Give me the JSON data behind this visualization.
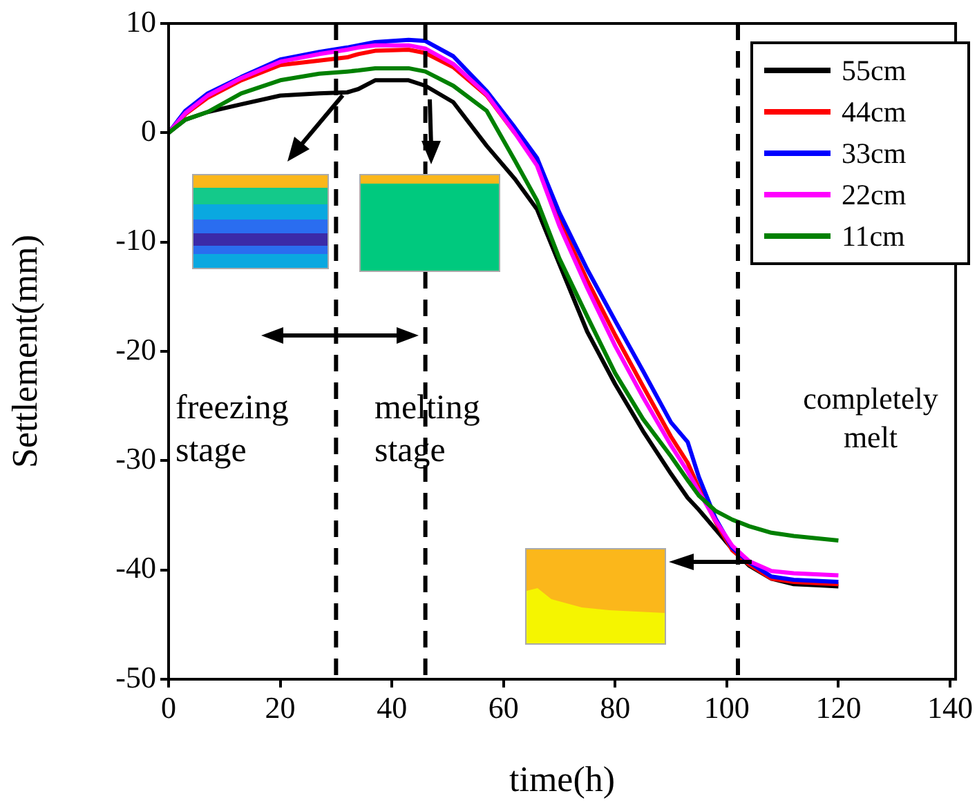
{
  "chart_data": {
    "type": "line",
    "xlabel": "time(h)",
    "ylabel": "Settlement(mm)",
    "x": [
      0,
      3,
      7,
      13,
      20,
      27,
      32,
      34,
      37,
      43,
      46,
      51,
      57,
      62,
      66,
      70,
      75,
      80,
      85,
      90,
      93,
      95,
      98,
      101,
      104,
      108,
      112,
      116,
      120
    ],
    "series": [
      {
        "name": "55cm",
        "color": "#000000",
        "values": [
          0,
          1.2,
          1.9,
          2.6,
          3.4,
          3.6,
          3.7,
          4.0,
          4.8,
          4.8,
          4.3,
          2.8,
          -1.2,
          -4.2,
          -7.0,
          -12.0,
          -18.2,
          -23.0,
          -27.3,
          -31.2,
          -33.4,
          -34.5,
          -36.3,
          -38.1,
          -39.6,
          -40.8,
          -41.3,
          -41.4,
          -41.5
        ]
      },
      {
        "name": "44cm",
        "color": "#ff0000",
        "values": [
          0,
          1.7,
          3.2,
          4.8,
          6.2,
          6.6,
          6.9,
          7.2,
          7.5,
          7.6,
          7.3,
          6.0,
          3.4,
          0,
          -2.4,
          -8.0,
          -13.5,
          -18.5,
          -23.2,
          -27.8,
          -30.2,
          -32.5,
          -35.6,
          -38.2,
          -39.5,
          -40.8,
          -41.1,
          -41.2,
          -41.3
        ]
      },
      {
        "name": "33cm",
        "color": "#0000ff",
        "values": [
          0,
          2.0,
          3.6,
          5.1,
          6.7,
          7.4,
          7.8,
          8.0,
          8.3,
          8.5,
          8.4,
          7.0,
          3.8,
          0.5,
          -2.3,
          -7.3,
          -12.5,
          -17.2,
          -21.8,
          -26.5,
          -28.3,
          -31.5,
          -35.3,
          -38.0,
          -39.3,
          -40.6,
          -40.9,
          -41.0,
          -41.1
        ]
      },
      {
        "name": "22cm",
        "color": "#ff00ff",
        "values": [
          0,
          1.8,
          3.4,
          5.0,
          6.5,
          7.2,
          7.6,
          7.8,
          8.0,
          8.0,
          7.7,
          6.3,
          3.5,
          0,
          -3.0,
          -8.5,
          -14.2,
          -19.5,
          -24.2,
          -28.6,
          -31.0,
          -32.8,
          -35.5,
          -37.8,
          -39.2,
          -40.1,
          -40.3,
          -40.4,
          -40.5
        ]
      },
      {
        "name": "11cm",
        "color": "#008000",
        "values": [
          0,
          1.2,
          1.9,
          3.6,
          4.8,
          5.4,
          5.6,
          5.7,
          5.9,
          5.9,
          5.6,
          4.3,
          2.0,
          -2.5,
          -6.2,
          -11.5,
          -16.8,
          -22.0,
          -26.2,
          -29.6,
          -31.8,
          -33.2,
          -34.6,
          -35.4,
          -36.0,
          -36.6,
          -36.9,
          -37.1,
          -37.3
        ]
      }
    ],
    "xlim": [
      0,
      141
    ],
    "xticks": [
      0,
      20,
      40,
      60,
      80,
      100,
      120,
      140
    ],
    "ylim": [
      -50,
      10
    ],
    "yticks": [
      -50,
      -40,
      -30,
      -20,
      -10,
      0,
      10
    ],
    "ref_lines": [
      {
        "axis": "x",
        "value": 30,
        "line_style": "dashed",
        "color": "#000000"
      },
      {
        "axis": "x",
        "value": 46,
        "line_style": "dashed",
        "color": "#000000"
      },
      {
        "axis": "x",
        "value": 102,
        "line_style": "dashed",
        "color": "#000000"
      }
    ],
    "annotations": [
      "freezing stage",
      "melting stage",
      "completely melt"
    ],
    "legend": "top right",
    "marker": "none",
    "line_style": "solid"
  }
}
